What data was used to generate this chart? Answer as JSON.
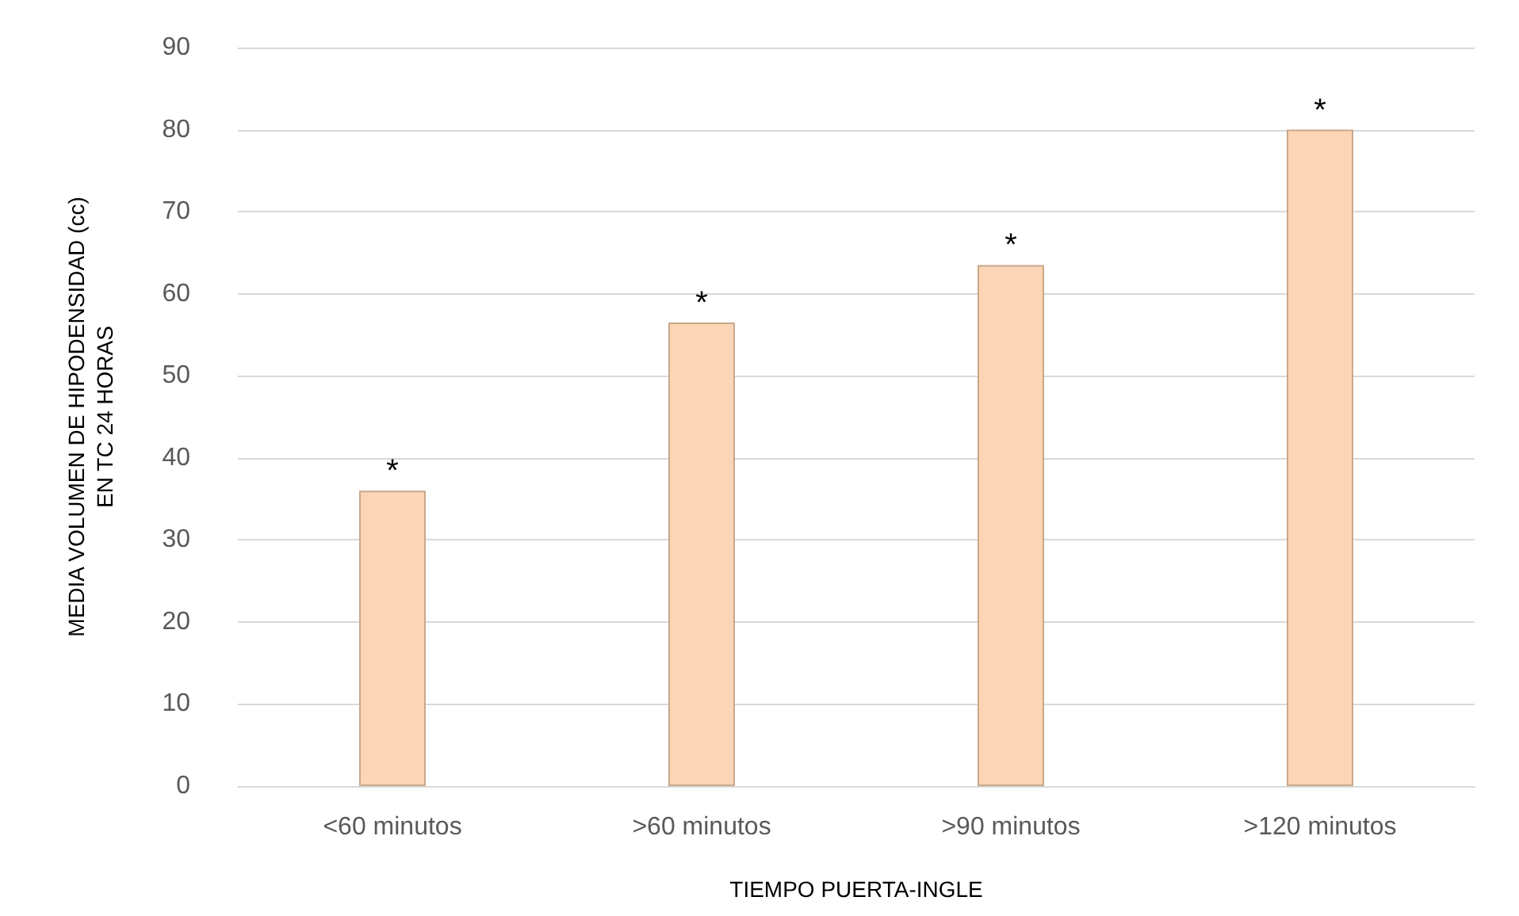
{
  "chart_data": {
    "type": "bar",
    "xlabel": "TIEMPO PUERTA-INGLE",
    "ylabel": "MEDIA VOLUMEN DE HIPODENSIDAD (cc)\nEN TC 24 HORAS",
    "categories": [
      "<60 minutos",
      ">60 minutos",
      ">90 minutos",
      ">120 minutos"
    ],
    "values": [
      36,
      56.5,
      63.5,
      80
    ],
    "color": "#fbd5b5",
    "ylim": [
      0,
      90
    ],
    "yticks": [
      0,
      10,
      20,
      30,
      40,
      50,
      60,
      70,
      80,
      90
    ],
    "grid": "y",
    "annotations": [
      {
        "text": "*",
        "x": "<60 minutos",
        "y": 36
      },
      {
        "text": "*",
        "x": ">60 minutos",
        "y": 56.5
      },
      {
        "text": "*",
        "x": ">90 minutos",
        "y": 63.5
      },
      {
        "text": "*",
        "x": ">120 minutos",
        "y": 80
      }
    ]
  }
}
